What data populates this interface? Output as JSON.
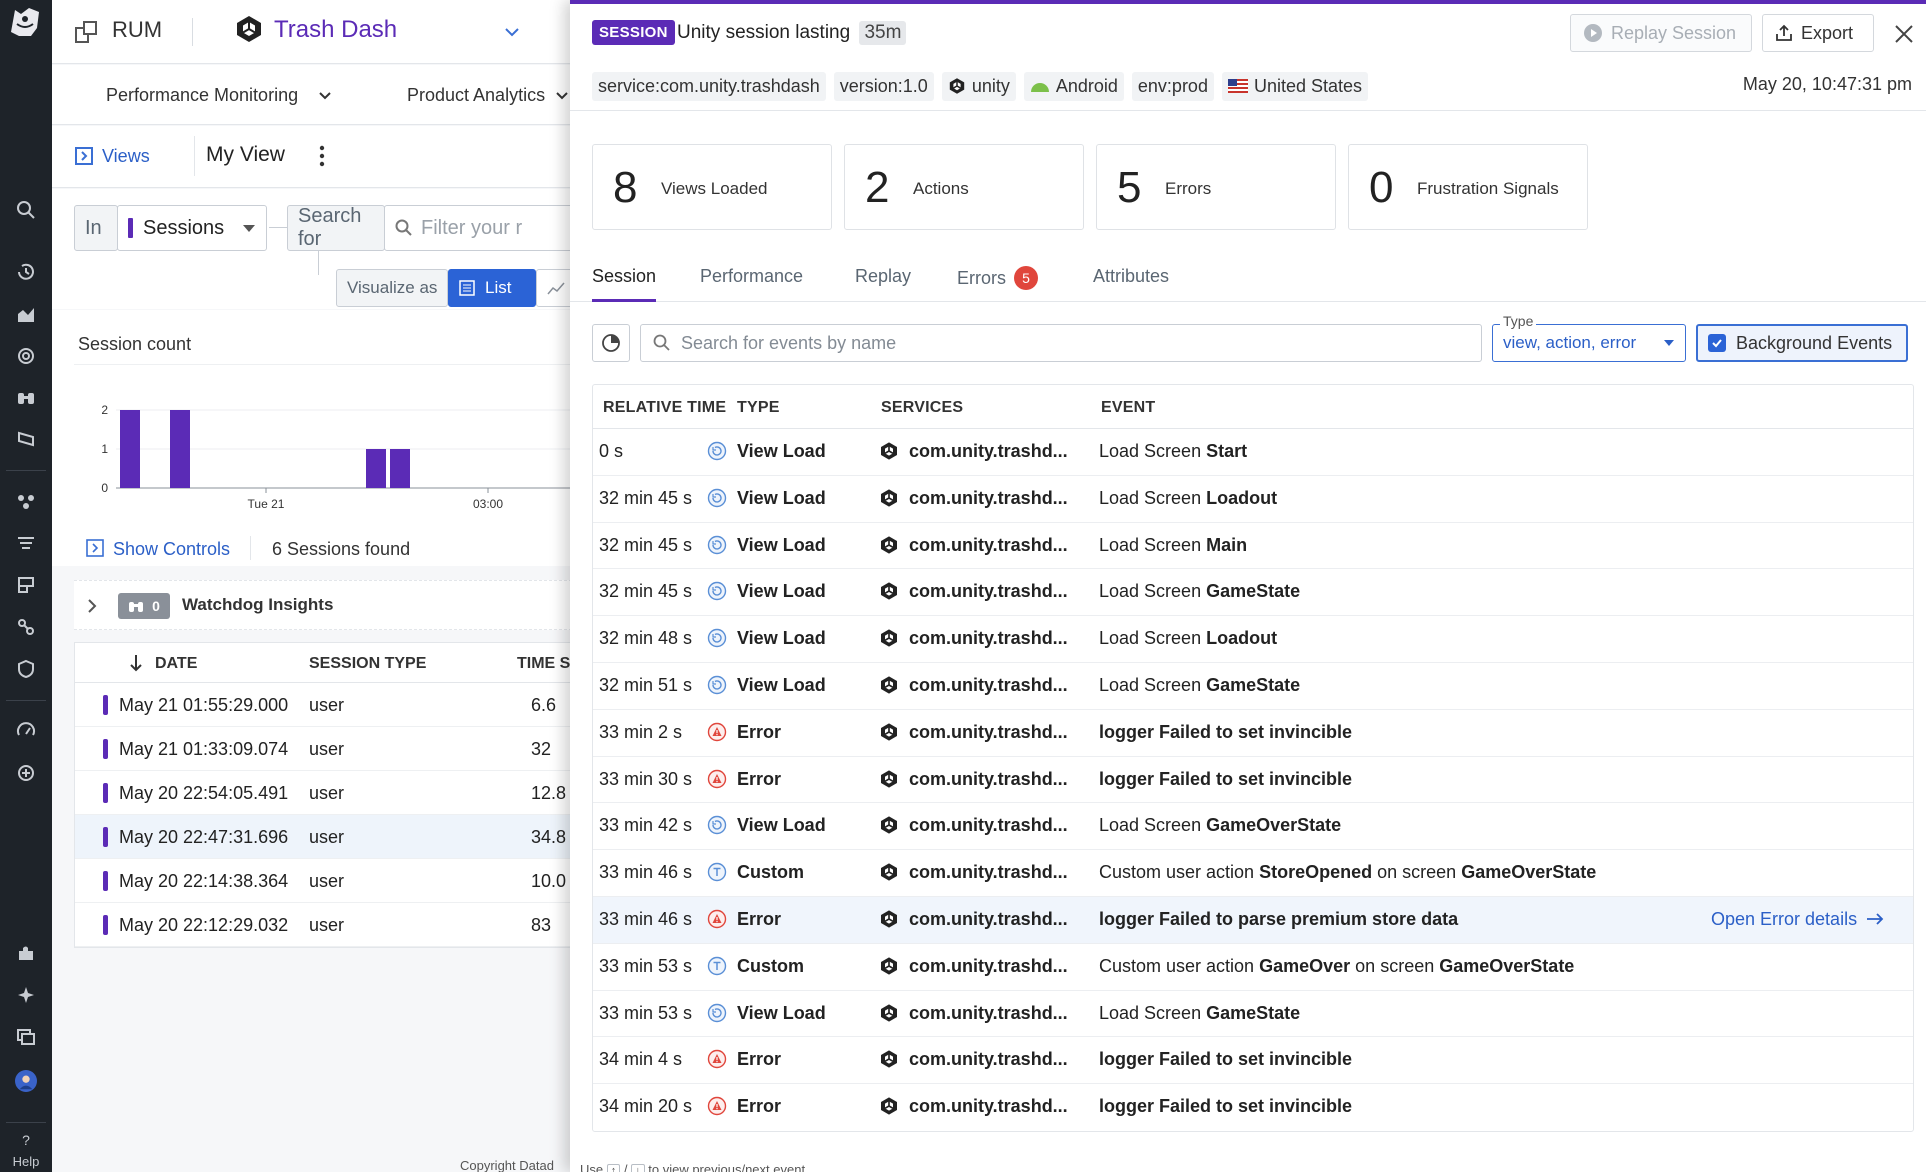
{
  "nav": {
    "help_label": "Help"
  },
  "app": {
    "product": "RUM",
    "title": "Trash Dash",
    "subnav": [
      "Performance Monitoring",
      "Product Analytics"
    ],
    "views_label": "Views",
    "view_name": "My View",
    "in_label": "In",
    "sessions_select": "Sessions",
    "search_for": "Search for",
    "filter_placeholder": "Filter your r",
    "visualize_as": "Visualize as",
    "list_label": "List",
    "chart_title": "Session count",
    "show_controls": "Show Controls",
    "sessions_found": "6 Sessions found",
    "watchdog_label": "Watchdog Insights",
    "watchdog_count": "0",
    "copyright": "Copyright Datad",
    "table": {
      "headers": [
        "DATE",
        "SESSION TYPE",
        "TIME SI"
      ],
      "rows": [
        {
          "date": "May 21 01:55:29.000",
          "type": "user",
          "time": "6.6"
        },
        {
          "date": "May 21 01:33:09.074",
          "type": "user",
          "time": "32"
        },
        {
          "date": "May 20 22:54:05.491",
          "type": "user",
          "time": "12.8"
        },
        {
          "date": "May 20 22:47:31.696",
          "type": "user",
          "time": "34.8"
        },
        {
          "date": "May 20 22:14:38.364",
          "type": "user",
          "time": "10.0"
        },
        {
          "date": "May 20 22:12:29.032",
          "type": "user",
          "time": "83"
        }
      ]
    }
  },
  "chart_data": {
    "type": "bar",
    "title": "Session count",
    "y_ticks": [
      "2",
      "1",
      "0"
    ],
    "x_tick_labels": [
      "Tue 21",
      "03:00"
    ],
    "ylim": [
      0,
      2
    ],
    "values": [
      2,
      2,
      1,
      1
    ],
    "color": "#5b2bb6"
  },
  "panel": {
    "badge": "SESSION",
    "title": "Unity session lasting",
    "duration": "35m",
    "replay_button": "Replay Session",
    "export_button": "Export",
    "tags": [
      "service:com.unity.trashdash",
      "version:1.0",
      "unity",
      "Android",
      "env:prod",
      "United States"
    ],
    "timestamp": "May 20, 10:47:31 pm",
    "stats": [
      {
        "num": "8",
        "label": "Views Loaded"
      },
      {
        "num": "2",
        "label": "Actions"
      },
      {
        "num": "5",
        "label": "Errors"
      },
      {
        "num": "0",
        "label": "Frustration Signals"
      }
    ],
    "tabs": [
      "Session",
      "Performance",
      "Replay",
      "Errors",
      "Attributes"
    ],
    "errors_badge": "5",
    "search_placeholder": "Search for events by name",
    "type_label": "Type",
    "type_value": "view, action, error",
    "background_events": "Background Events",
    "columns": [
      "RELATIVE TIME",
      "TYPE",
      "SERVICES",
      "EVENT"
    ],
    "open_error": "Open Error details",
    "footer_use": "Use",
    "footer_slash": "/",
    "footer_rest": "to view previous/next event",
    "events": [
      {
        "time": "0 s",
        "type": "View Load",
        "kind": "view",
        "service": "com.unity.trashd...",
        "event_pre": "Load Screen",
        "event_bold": "Start",
        "event_mid": "",
        "event_bold2": ""
      },
      {
        "time": "32 min 45 s",
        "type": "View Load",
        "kind": "view",
        "service": "com.unity.trashd...",
        "event_pre": "Load Screen",
        "event_bold": "Loadout",
        "event_mid": "",
        "event_bold2": ""
      },
      {
        "time": "32 min 45 s",
        "type": "View Load",
        "kind": "view",
        "service": "com.unity.trashd...",
        "event_pre": "Load Screen",
        "event_bold": "Main",
        "event_mid": "",
        "event_bold2": ""
      },
      {
        "time": "32 min 45 s",
        "type": "View Load",
        "kind": "view",
        "service": "com.unity.trashd...",
        "event_pre": "Load Screen",
        "event_bold": "GameState",
        "event_mid": "",
        "event_bold2": ""
      },
      {
        "time": "32 min 48 s",
        "type": "View Load",
        "kind": "view",
        "service": "com.unity.trashd...",
        "event_pre": "Load Screen",
        "event_bold": "Loadout",
        "event_mid": "",
        "event_bold2": ""
      },
      {
        "time": "32 min 51 s",
        "type": "View Load",
        "kind": "view",
        "service": "com.unity.trashd...",
        "event_pre": "Load Screen",
        "event_bold": "GameState",
        "event_mid": "",
        "event_bold2": ""
      },
      {
        "time": "33 min 2 s",
        "type": "Error",
        "kind": "error",
        "service": "com.unity.trashd...",
        "event_pre": "",
        "event_bold": "logger Failed to set invincible",
        "event_mid": "",
        "event_bold2": ""
      },
      {
        "time": "33 min 30 s",
        "type": "Error",
        "kind": "error",
        "service": "com.unity.trashd...",
        "event_pre": "",
        "event_bold": "logger Failed to set invincible",
        "event_mid": "",
        "event_bold2": ""
      },
      {
        "time": "33 min 42 s",
        "type": "View Load",
        "kind": "view",
        "service": "com.unity.trashd...",
        "event_pre": "Load Screen",
        "event_bold": "GameOverState",
        "event_mid": "",
        "event_bold2": ""
      },
      {
        "time": "33 min 46 s",
        "type": "Custom",
        "kind": "custom",
        "service": "com.unity.trashd...",
        "event_pre": "Custom user action",
        "event_bold": "StoreOpened",
        "event_mid": "on screen",
        "event_bold2": "GameOverState"
      },
      {
        "time": "33 min 46 s",
        "type": "Error",
        "kind": "error",
        "service": "com.unity.trashd...",
        "event_pre": "",
        "event_bold": "logger Failed to parse premium store data",
        "event_mid": "",
        "event_bold2": "",
        "highlight": true
      },
      {
        "time": "33 min 53 s",
        "type": "Custom",
        "kind": "custom",
        "service": "com.unity.trashd...",
        "event_pre": "Custom user action",
        "event_bold": "GameOver",
        "event_mid": "on screen",
        "event_bold2": "GameOverState"
      },
      {
        "time": "33 min 53 s",
        "type": "View Load",
        "kind": "view",
        "service": "com.unity.trashd...",
        "event_pre": "Load Screen",
        "event_bold": "GameState",
        "event_mid": "",
        "event_bold2": ""
      },
      {
        "time": "34 min 4 s",
        "type": "Error",
        "kind": "error",
        "service": "com.unity.trashd...",
        "event_pre": "",
        "event_bold": "logger Failed to set invincible",
        "event_mid": "",
        "event_bold2": ""
      },
      {
        "time": "34 min 20 s",
        "type": "Error",
        "kind": "error",
        "service": "com.unity.trashd...",
        "event_pre": "",
        "event_bold": "logger Failed to set invincible",
        "event_mid": "",
        "event_bold2": ""
      }
    ]
  }
}
